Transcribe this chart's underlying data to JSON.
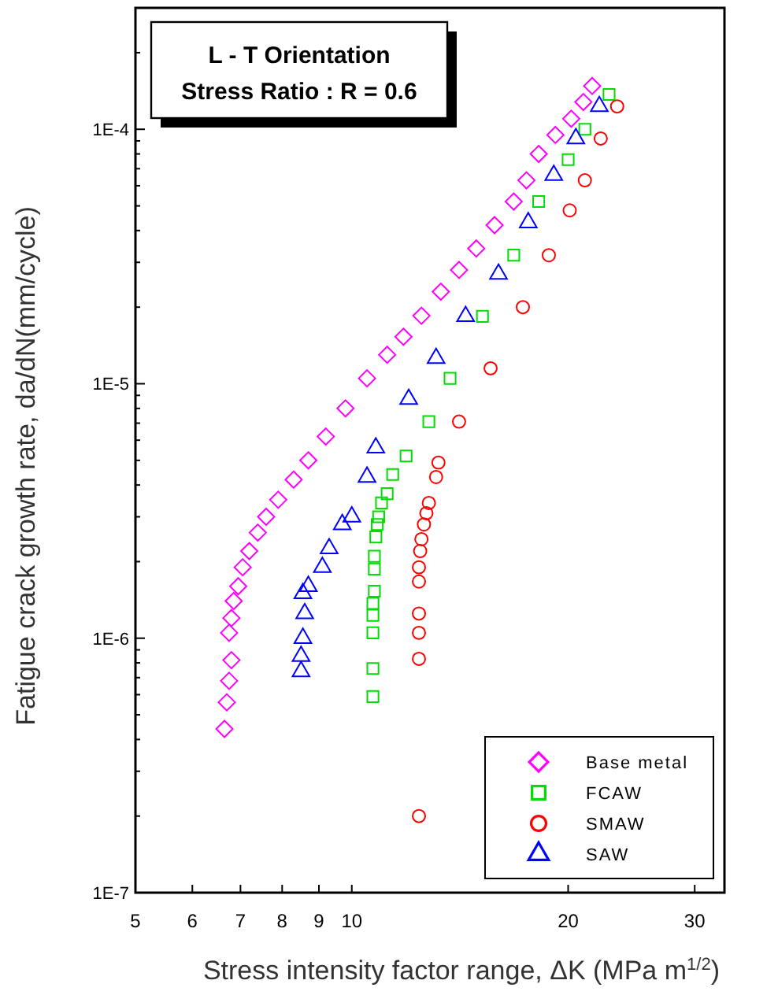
{
  "chart_data": {
    "type": "scatter",
    "title": "L - T Orientation",
    "subtitle": "Stress Ratio : R = 0.6",
    "xlabel": "Stress intensity factor range, ΔK (MPa m$^{1/2}$)",
    "ylabel": "Fatigue crack growth rate, da/dN(mm/cycle)",
    "log": "xy",
    "grid": false,
    "legend": "bottom right",
    "xlim": [
      5,
      33
    ],
    "xticks": [
      5,
      6,
      7,
      8,
      9,
      10,
      20,
      30
    ],
    "ylim": [
      1e-07,
      0.0003
    ],
    "yticks": [
      {
        "value": 1e-07,
        "label": "1E-7"
      },
      {
        "value": 2e-07,
        "label": null
      },
      {
        "value": 3e-07,
        "label": null
      },
      {
        "value": 4e-07,
        "label": null
      },
      {
        "value": 5e-07,
        "label": null
      },
      {
        "value": 6e-07,
        "label": null
      },
      {
        "value": 7e-07,
        "label": null
      },
      {
        "value": 8e-07,
        "label": null
      },
      {
        "value": 9e-07,
        "label": null
      },
      {
        "value": 1e-06,
        "label": "1E-6"
      },
      {
        "value": 2e-06,
        "label": null
      },
      {
        "value": 3e-06,
        "label": null
      },
      {
        "value": 4e-06,
        "label": null
      },
      {
        "value": 5e-06,
        "label": null
      },
      {
        "value": 6e-06,
        "label": null
      },
      {
        "value": 7e-06,
        "label": null
      },
      {
        "value": 8e-06,
        "label": null
      },
      {
        "value": 9e-06,
        "label": null
      },
      {
        "value": 1e-05,
        "label": "1E-5"
      },
      {
        "value": 2e-05,
        "label": null
      },
      {
        "value": 3e-05,
        "label": null
      },
      {
        "value": 4e-05,
        "label": null
      },
      {
        "value": 5e-05,
        "label": null
      },
      {
        "value": 6e-05,
        "label": null
      },
      {
        "value": 7e-05,
        "label": null
      },
      {
        "value": 8e-05,
        "label": null
      },
      {
        "value": 9e-05,
        "label": null
      },
      {
        "value": 0.0001,
        "label": "1E-4"
      },
      {
        "value": 0.0002,
        "label": null
      },
      {
        "value": 0.0003,
        "label": null
      }
    ],
    "series": [
      {
        "name": "Base metal",
        "color": "#ff00ff",
        "marker": "diamond",
        "x": [
          6.65,
          6.7,
          6.75,
          6.8,
          6.75,
          6.8,
          6.85,
          6.95,
          7.05,
          7.2,
          7.4,
          7.6,
          7.9,
          8.3,
          8.7,
          9.2,
          9.8,
          10.5,
          11.2,
          11.8,
          12.5,
          13.3,
          14.1,
          14.9,
          15.8,
          16.8,
          17.5,
          18.2,
          19.2,
          20.2,
          21,
          21.6
        ],
        "values": [
          4.4e-07,
          5.6e-07,
          6.8e-07,
          8.2e-07,
          1.05e-06,
          1.2e-06,
          1.4e-06,
          1.6e-06,
          1.9e-06,
          2.2e-06,
          2.6e-06,
          3e-06,
          3.5e-06,
          4.2e-06,
          5e-06,
          6.2e-06,
          8e-06,
          1.05e-05,
          1.3e-05,
          1.53e-05,
          1.85e-05,
          2.3e-05,
          2.8e-05,
          3.4e-05,
          4.2e-05,
          5.2e-05,
          6.3e-05,
          8e-05,
          9.5e-05,
          0.00011,
          0.000128,
          0.000148
        ]
      },
      {
        "name": "FCAW",
        "color": "#00dd00",
        "marker": "square",
        "x": [
          10.7,
          10.7,
          10.7,
          10.7,
          10.7,
          10.75,
          10.75,
          10.75,
          10.8,
          10.85,
          10.9,
          11,
          11.2,
          11.4,
          11.9,
          12.8,
          13.7,
          15.2,
          16.8,
          18.2,
          20,
          21.1,
          22.8
        ],
        "values": [
          5.9e-07,
          7.6e-07,
          1.05e-06,
          1.23e-06,
          1.37e-06,
          1.53e-06,
          1.87e-06,
          2.1e-06,
          2.5e-06,
          2.8e-06,
          3e-06,
          3.4e-06,
          3.7e-06,
          4.4e-06,
          5.2e-06,
          7.1e-06,
          1.05e-05,
          1.84e-05,
          3.2e-05,
          5.2e-05,
          7.6e-05,
          0.0001,
          0.000137
        ]
      },
      {
        "name": "SMAW",
        "color": "#ff0000",
        "marker": "circle",
        "x": [
          12.4,
          12.4,
          12.4,
          12.4,
          12.4,
          12.4,
          12.45,
          12.5,
          12.6,
          12.7,
          12.8,
          13.1,
          13.2,
          14.1,
          15.6,
          17.3,
          18.8,
          20.1,
          21.1,
          22.2,
          23.4
        ],
        "values": [
          2e-07,
          8.3e-07,
          1.05e-06,
          1.25e-06,
          1.67e-06,
          1.9e-06,
          2.2e-06,
          2.45e-06,
          2.8e-06,
          3.1e-06,
          3.4e-06,
          4.3e-06,
          4.9e-06,
          7.1e-06,
          1.15e-05,
          2e-05,
          3.2e-05,
          4.8e-05,
          6.3e-05,
          9.2e-05,
          0.000123
        ]
      },
      {
        "name": "SAW",
        "color": "#0000ff",
        "marker": "triangle",
        "x": [
          8.5,
          8.5,
          8.55,
          8.6,
          8.55,
          8.7,
          9.1,
          9.3,
          9.7,
          10,
          10.5,
          10.8,
          12,
          13.1,
          14.4,
          16,
          17.6,
          19.1,
          20.5,
          22.1
        ],
        "values": [
          7.4e-07,
          8.5e-07,
          1e-06,
          1.25e-06,
          1.5e-06,
          1.6e-06,
          1.9e-06,
          2.25e-06,
          2.8e-06,
          3e-06,
          4.3e-06,
          5.6e-06,
          8.7e-06,
          1.26e-05,
          1.84e-05,
          2.7e-05,
          4.3e-05,
          6.6e-05,
          9.2e-05,
          0.000123
        ]
      }
    ]
  }
}
